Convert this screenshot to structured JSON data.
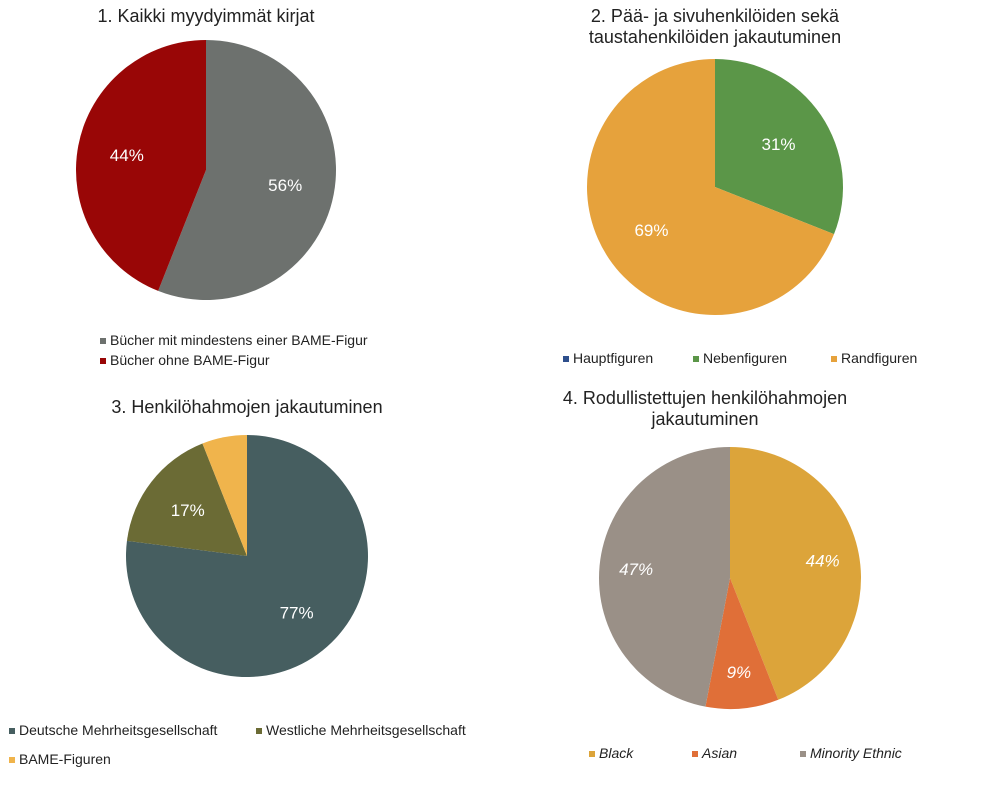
{
  "chart_data": [
    {
      "type": "pie",
      "title": "1. Kaikki myydyimmät  kirjat",
      "labels": [
        "Bücher mit mindestens einer BAME-Figur",
        "Bücher ohne BAME-Figur"
      ],
      "values": [
        56,
        44
      ],
      "data_labels": [
        "56%",
        "44%"
      ],
      "colors": [
        "#6d716e",
        "#990606"
      ],
      "legend": "bottom"
    },
    {
      "type": "pie",
      "title": "2. Pää- ja sivuhenkilöiden sekä taustahenkilöiden jakautuminen",
      "labels": [
        "Hauptfiguren",
        "Nebenfiguren",
        "Randfiguren"
      ],
      "values": [
        0,
        31,
        69
      ],
      "data_labels": [
        "",
        "31%",
        "69%"
      ],
      "colors": [
        "#2e4f8c",
        "#5b9648",
        "#e6a23c"
      ],
      "legend": "bottom"
    },
    {
      "type": "pie",
      "title": "3. Henkilöhahmojen  jakautuminen",
      "labels": [
        "Deutsche Mehrheitsgesellschaft",
        "Westliche Mehrheitsgesellschaft",
        "BAME-Figuren"
      ],
      "values": [
        77,
        17,
        6
      ],
      "data_labels": [
        "77%",
        "17%",
        ""
      ],
      "colors": [
        "#465e60",
        "#6b6b35",
        "#f0b44c"
      ],
      "legend": "bottom"
    },
    {
      "type": "pie",
      "title": "4. Rodullistettujen  henkilöhahmojen jakautuminen",
      "labels": [
        "Black",
        "Asian",
        "Minority Ethnic"
      ],
      "values": [
        44,
        9,
        47
      ],
      "data_labels": [
        "44%",
        "9%",
        "47%"
      ],
      "colors": [
        "#dca43a",
        "#e06f38",
        "#9a9087"
      ],
      "legend": "bottom"
    }
  ]
}
